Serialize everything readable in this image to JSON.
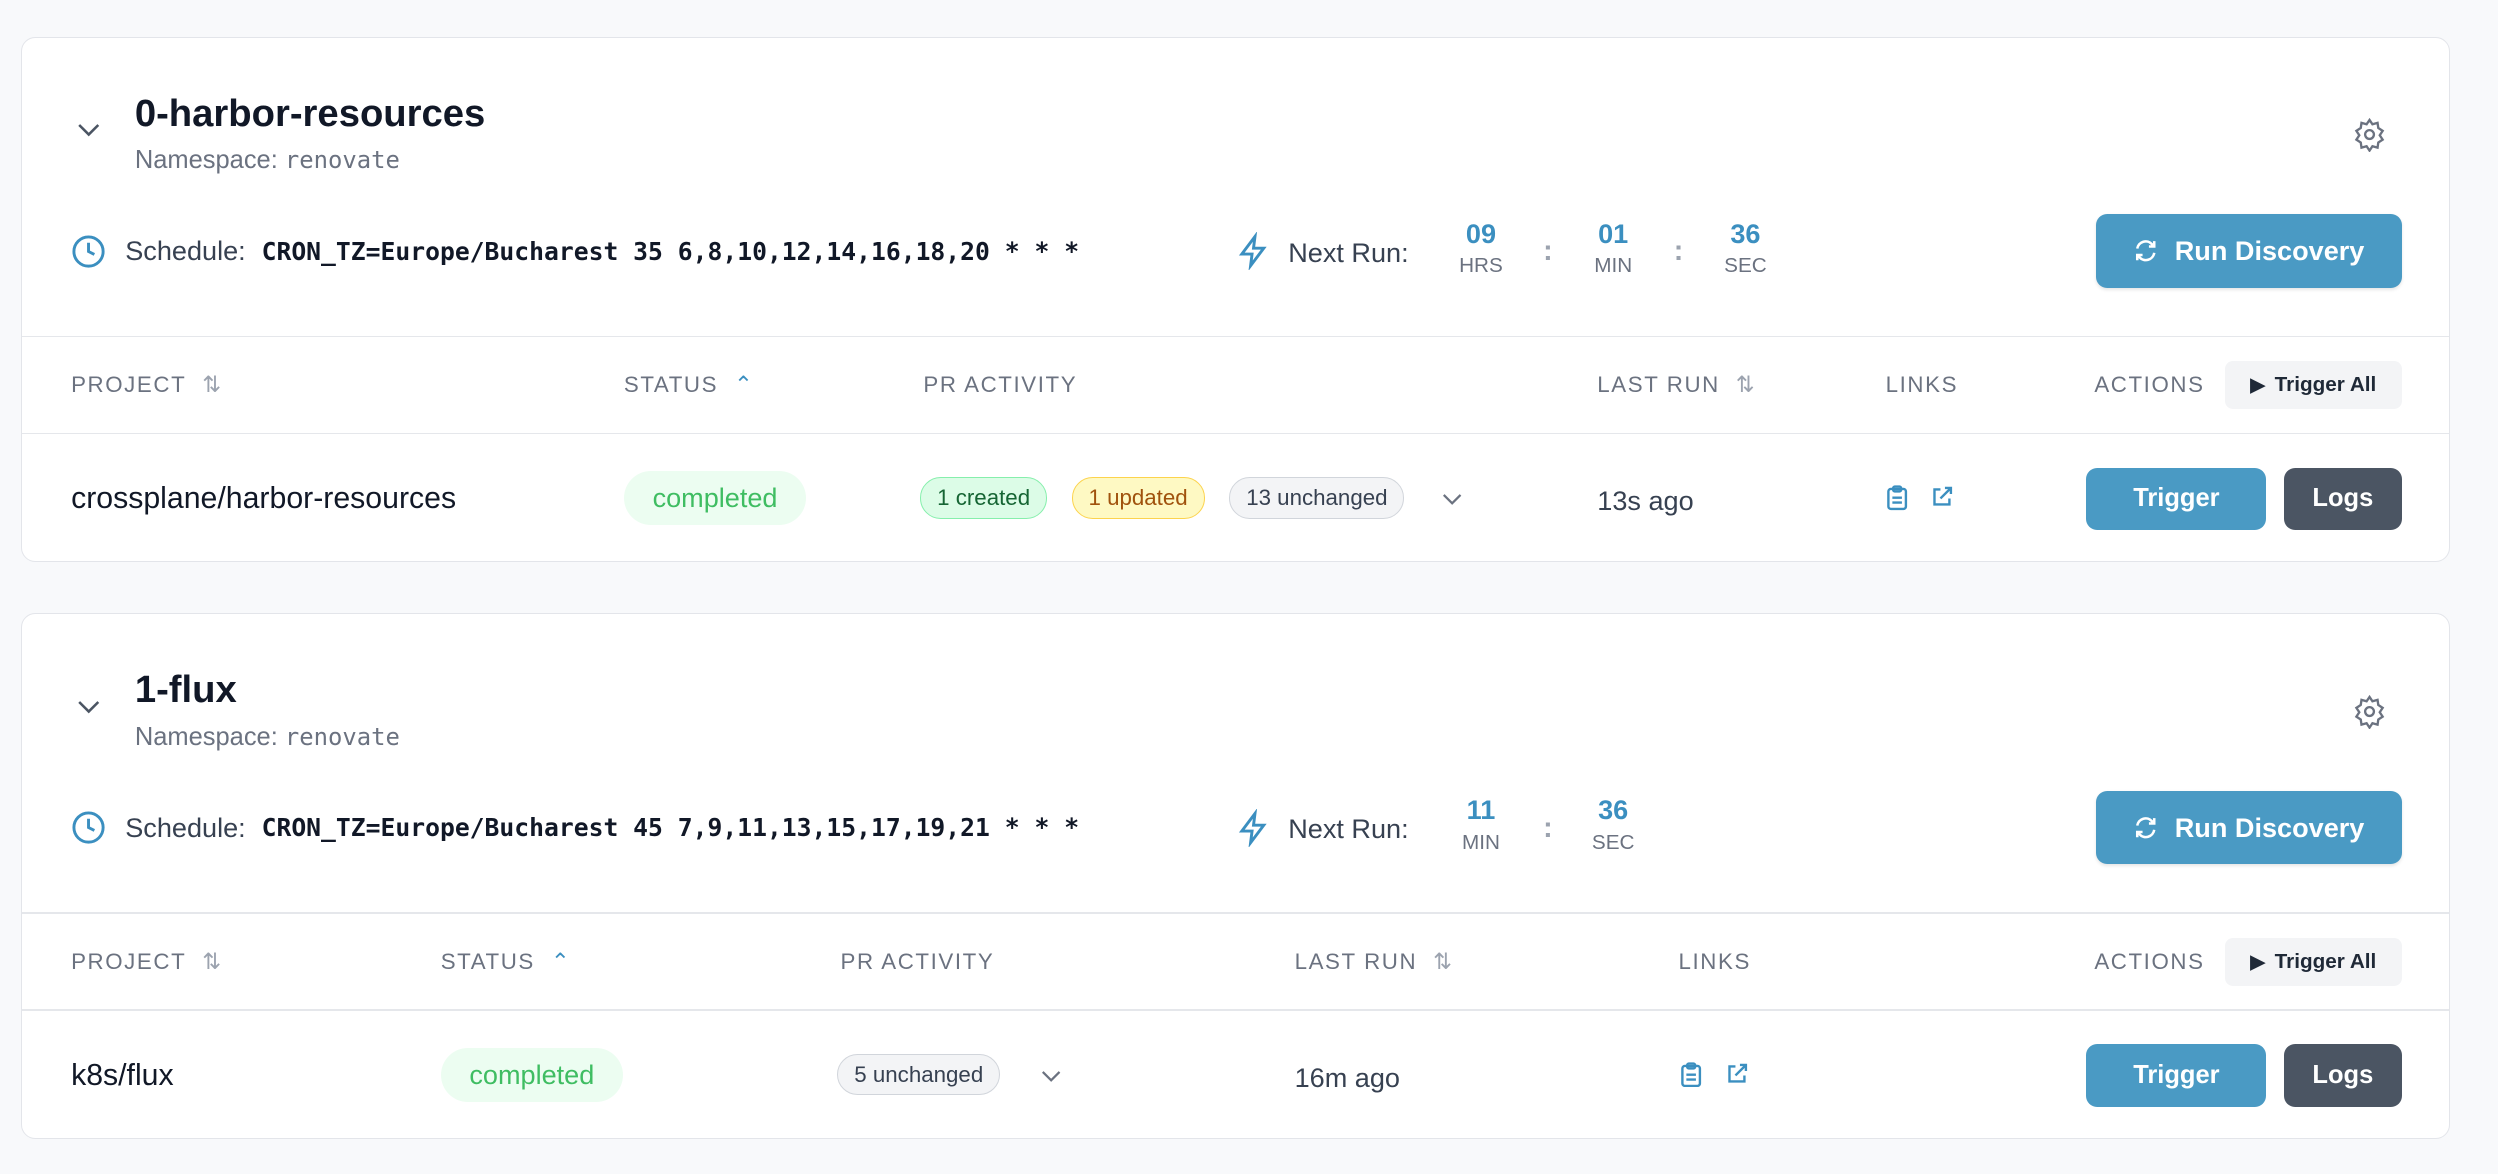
{
  "colors": {
    "accent": "#4a9ac4",
    "completed": "#3fbd62",
    "logs": "#4b5563"
  },
  "labels": {
    "schedule": "Schedule:",
    "next_run": "Next Run:",
    "run_discovery": "Run Discovery",
    "trigger_all": "Trigger All",
    "trigger": "Trigger",
    "logs": "Logs",
    "namespace_prefix": "Namespace:"
  },
  "columns": {
    "project": "PROJECT",
    "status": "STATUS",
    "pr_activity": "PR ACTIVITY",
    "last_run": "LAST RUN",
    "links": "LINKS",
    "actions": "ACTIONS"
  },
  "groups": [
    {
      "name": "0-harbor-resources",
      "namespace": "renovate",
      "schedule": "CRON_TZ=Europe/Bucharest 35 6,8,10,12,14,16,18,20 * * *",
      "countdown": [
        {
          "value": "09",
          "unit": "HRS"
        },
        {
          "value": "01",
          "unit": "MIN"
        },
        {
          "value": "36",
          "unit": "SEC"
        }
      ],
      "rows": [
        {
          "project": "crossplane/harbor-resources",
          "status": "completed",
          "badges": [
            "1 created",
            "1 updated",
            "13 unchanged"
          ],
          "last_run": "13s ago"
        }
      ]
    },
    {
      "name": "1-flux",
      "namespace": "renovate",
      "schedule": "CRON_TZ=Europe/Bucharest 45 7,9,11,13,15,17,19,21 * * *",
      "countdown": [
        {
          "value": "11",
          "unit": "MIN"
        },
        {
          "value": "36",
          "unit": "SEC"
        }
      ],
      "rows": [
        {
          "project": "k8s/flux",
          "status": "completed",
          "badges": [
            "5 unchanged"
          ],
          "last_run": "16m ago"
        }
      ]
    }
  ]
}
